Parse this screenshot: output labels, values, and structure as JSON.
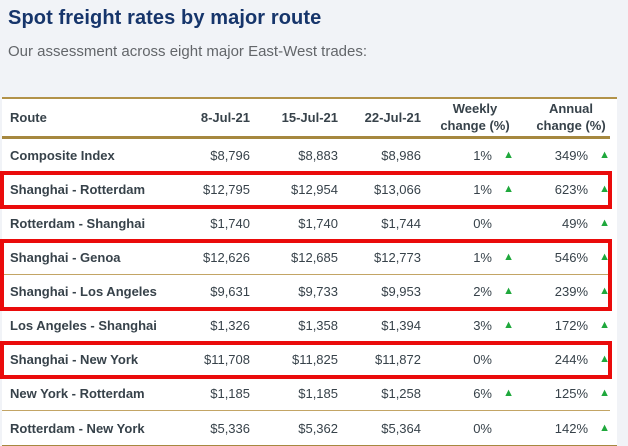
{
  "page": {
    "title": "Spot freight rates by major route",
    "subtitle": "Our assessment across eight major East-West trades:"
  },
  "icons": {
    "up_triangle": "▲"
  },
  "colors": {
    "title_navy": "#16356b",
    "gold_rule": "#a6883f",
    "row_separator_tan": "#c3a565",
    "highlight_red": "#ea0b0b",
    "up_green": "#1fa83c",
    "body_text": "#37424a",
    "subtitle_gray": "#63666a",
    "page_background": "#f1f3f7",
    "table_background": "#ffffff"
  },
  "table": {
    "columns": [
      "Route",
      "8-Jul-21",
      "15-Jul-21",
      "22-Jul-21",
      "Weekly change (%)",
      "Annual change (%)"
    ],
    "rows": [
      {
        "route": "Composite Index",
        "d1": "$8,796",
        "d2": "$8,883",
        "d3": "$8,986",
        "weekly": {
          "value": "1%",
          "up": true
        },
        "annual": {
          "value": "349%",
          "up": true
        },
        "box": null
      },
      {
        "route": "Shanghai - Rotterdam",
        "d1": "$12,795",
        "d2": "$12,954",
        "d3": "$13,066",
        "weekly": {
          "value": "1%",
          "up": true
        },
        "annual": {
          "value": "623%",
          "up": true
        },
        "box": "b1"
      },
      {
        "route": "Rotterdam - Shanghai",
        "d1": "$1,740",
        "d2": "$1,740",
        "d3": "$1,744",
        "weekly": {
          "value": "0%",
          "up": false
        },
        "annual": {
          "value": "49%",
          "up": true
        },
        "box": null
      },
      {
        "route": "Shanghai - Genoa",
        "d1": "$12,626",
        "d2": "$12,685",
        "d3": "$12,773",
        "weekly": {
          "value": "1%",
          "up": true
        },
        "annual": {
          "value": "546%",
          "up": true
        },
        "box": "b2"
      },
      {
        "route": "Shanghai - Los Angeles",
        "d1": "$9,631",
        "d2": "$9,733",
        "d3": "$9,953",
        "weekly": {
          "value": "2%",
          "up": true
        },
        "annual": {
          "value": "239%",
          "up": true
        },
        "box": "b2"
      },
      {
        "route": "Los Angeles - Shanghai",
        "d1": "$1,326",
        "d2": "$1,358",
        "d3": "$1,394",
        "weekly": {
          "value": "3%",
          "up": true
        },
        "annual": {
          "value": "172%",
          "up": true
        },
        "box": null
      },
      {
        "route": "Shanghai - New York",
        "d1": "$11,708",
        "d2": "$11,825",
        "d3": "$11,872",
        "weekly": {
          "value": "0%",
          "up": false
        },
        "annual": {
          "value": "244%",
          "up": true
        },
        "box": "b3"
      },
      {
        "route": "New York - Rotterdam",
        "d1": "$1,185",
        "d2": "$1,185",
        "d3": "$1,258",
        "weekly": {
          "value": "6%",
          "up": true
        },
        "annual": {
          "value": "125%",
          "up": true
        },
        "box": null
      },
      {
        "route": "Rotterdam - New York",
        "d1": "$5,336",
        "d2": "$5,362",
        "d3": "$5,364",
        "weekly": {
          "value": "0%",
          "up": false
        },
        "annual": {
          "value": "142%",
          "up": true
        },
        "box": null
      }
    ]
  }
}
